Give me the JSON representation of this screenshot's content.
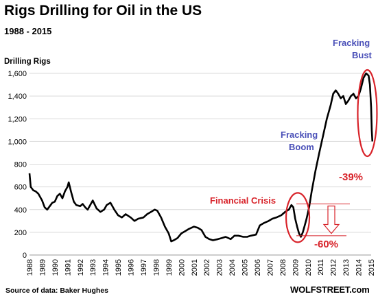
{
  "header": {
    "title": "Rigs Drilling for Oil in the US",
    "subtitle": "1988 - 2015"
  },
  "footer": {
    "source": "Source of data: Baker Hughes",
    "brand": "WOLFSTREET.com"
  },
  "colors": {
    "line": "#000000",
    "annotation_blue": "#4a50b8",
    "annotation_red": "#d8232a",
    "circle": "#d8232a"
  },
  "chart_data": {
    "type": "line",
    "title": "Rigs Drilling for Oil in the US",
    "subtitle": "1988 - 2015",
    "ylabel": "Drilling Rigs",
    "xlabel": "",
    "xlim": [
      1988,
      2015
    ],
    "ylim": [
      0,
      1600
    ],
    "yticks": [
      0,
      200,
      400,
      600,
      800,
      1000,
      1200,
      1400,
      1600
    ],
    "ytick_labels": [
      "0",
      "200",
      "400",
      "600",
      "800",
      "1,000",
      "1,200",
      "1,400",
      "1,600"
    ],
    "xticks": [
      "1988",
      "1989",
      "1990",
      "1991",
      "1992",
      "1993",
      "1994",
      "1995",
      "1996",
      "1997",
      "1998",
      "1999",
      "2000",
      "2001",
      "2002",
      "2003",
      "2004",
      "2005",
      "2006",
      "2007",
      "2008",
      "2009",
      "2010",
      "2011",
      "2012",
      "2013",
      "2014",
      "2015"
    ],
    "grid": "horizontal",
    "series": [
      {
        "x": [
          1988.0,
          1988.1,
          1988.3,
          1988.5,
          1988.7,
          1989.0,
          1989.2,
          1989.4,
          1989.6,
          1989.8,
          1990.0,
          1990.2,
          1990.4,
          1990.6,
          1990.8,
          1991.0,
          1991.1,
          1991.3,
          1991.5,
          1991.7,
          1992.0,
          1992.2,
          1992.4,
          1992.6,
          1992.8,
          1993.0,
          1993.3,
          1993.6,
          1993.9,
          1994.1,
          1994.4,
          1994.7,
          1995.0,
          1995.3,
          1995.6,
          1996.0,
          1996.3,
          1996.6,
          1997.0,
          1997.3,
          1997.6,
          1997.9,
          1998.1,
          1998.4,
          1998.7,
          1999.0,
          1999.2,
          1999.4,
          1999.7,
          2000.0,
          2000.3,
          2000.6,
          2001.0,
          2001.3,
          2001.6,
          2001.9,
          2002.2,
          2002.5,
          2002.9,
          2003.2,
          2003.5,
          2003.9,
          2004.2,
          2004.5,
          2004.9,
          2005.2,
          2005.5,
          2005.9,
          2006.2,
          2006.5,
          2006.9,
          2007.2,
          2007.5,
          2007.9,
          2008.2,
          2008.5,
          2008.7,
          2008.85,
          2009.0,
          2009.15,
          2009.3,
          2009.45,
          2009.6,
          2009.75,
          2009.9,
          2010.1,
          2010.3,
          2010.6,
          2010.9,
          2011.2,
          2011.5,
          2011.8,
          2012.0,
          2012.2,
          2012.4,
          2012.6,
          2012.8,
          2013.0,
          2013.2,
          2013.4,
          2013.6,
          2013.8,
          2014.0,
          2014.2,
          2014.4,
          2014.6,
          2014.8,
          2014.9,
          2015.0,
          2015.05,
          2015.1
        ],
        "y": [
          720,
          600,
          570,
          560,
          540,
          480,
          420,
          400,
          430,
          460,
          470,
          520,
          540,
          500,
          560,
          600,
          640,
          550,
          470,
          440,
          430,
          450,
          420,
          400,
          440,
          480,
          410,
          380,
          400,
          440,
          460,
          400,
          350,
          330,
          360,
          330,
          300,
          320,
          330,
          360,
          380,
          400,
          390,
          330,
          250,
          190,
          120,
          130,
          150,
          190,
          210,
          230,
          250,
          240,
          220,
          160,
          140,
          130,
          140,
          150,
          160,
          140,
          170,
          170,
          160,
          160,
          170,
          180,
          260,
          280,
          300,
          320,
          330,
          350,
          380,
          400,
          440,
          420,
          320,
          250,
          190,
          160,
          200,
          260,
          320,
          420,
          560,
          740,
          900,
          1050,
          1200,
          1320,
          1420,
          1450,
          1420,
          1380,
          1400,
          1330,
          1360,
          1400,
          1420,
          1380,
          1400,
          1470,
          1560,
          1600,
          1580,
          1500,
          1300,
          1100,
          1000
        ],
        "line_color": "#000000"
      }
    ],
    "annotations": [
      {
        "text": "Fracking",
        "color": "#4a50b8"
      },
      {
        "text": "Bust",
        "color": "#4a50b8"
      },
      {
        "text": "Fracking",
        "color": "#4a50b8"
      },
      {
        "text": "Boom",
        "color": "#4a50b8"
      },
      {
        "text": "-39%",
        "color": "#d8232a"
      },
      {
        "text": "Financial Crisis",
        "color": "#d8232a"
      },
      {
        "text": "-60%",
        "color": "#d8232a"
      }
    ]
  }
}
